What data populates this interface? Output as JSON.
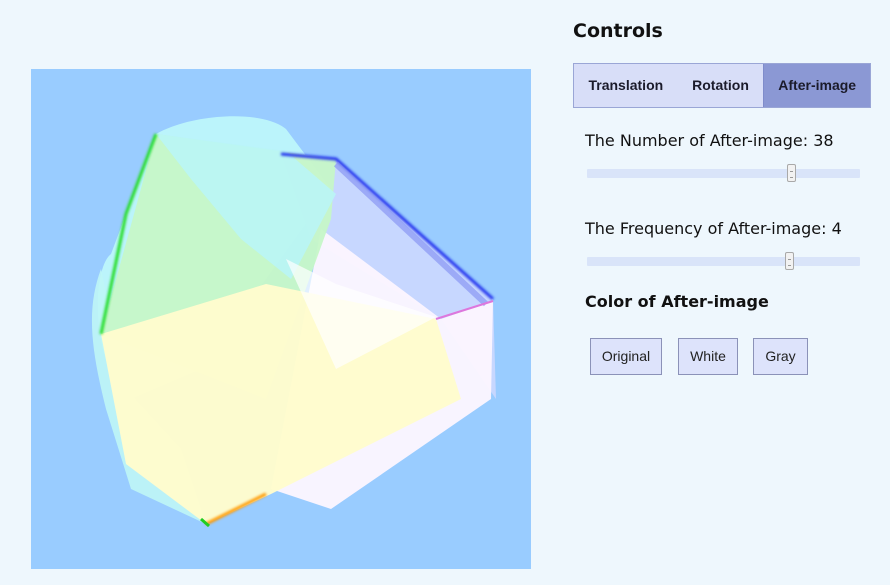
{
  "controls": {
    "title": "Controls",
    "tabs": [
      {
        "label": "Translation",
        "active": false
      },
      {
        "label": "Rotation",
        "active": false
      },
      {
        "label": "After-image",
        "active": true
      }
    ],
    "number_label": "The Number of After-image: 38",
    "number_value": 38,
    "frequency_label": "The Frequency of After-image: 4",
    "frequency_value": 4,
    "color_title": "Color of After-image",
    "color_buttons": [
      "Original",
      "White",
      "Gray"
    ]
  },
  "canvas": {
    "background": "#99ccff"
  }
}
